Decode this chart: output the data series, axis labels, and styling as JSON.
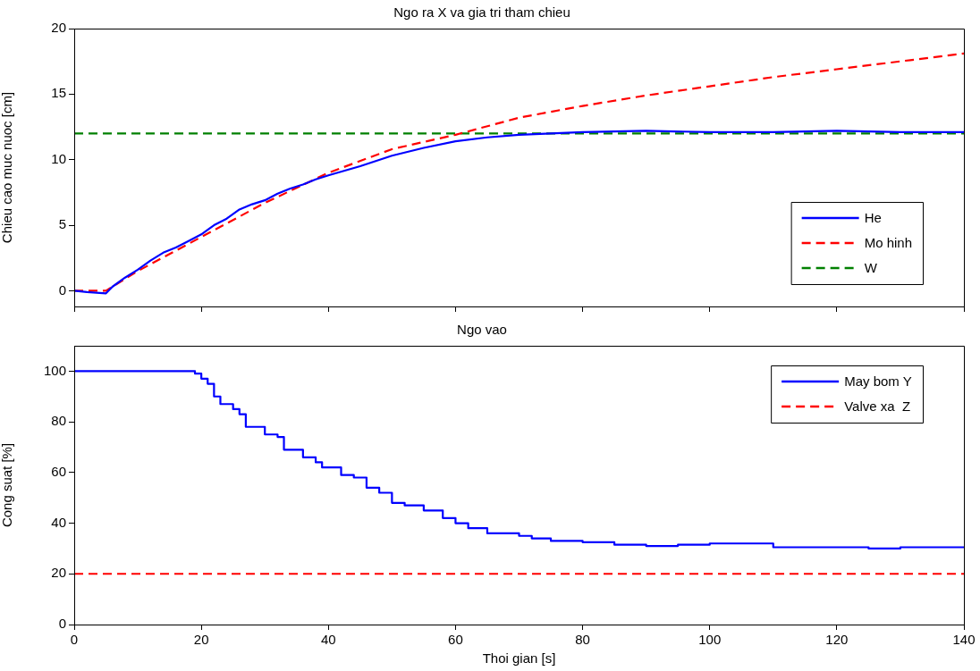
{
  "chart_data": [
    {
      "type": "line",
      "title": "Ngo ra X va gia tri tham chieu",
      "ylabel": "Chieu cao muc nuoc [cm]",
      "xlim": [
        0,
        140
      ],
      "xticks": [
        0,
        20,
        40,
        60,
        80,
        100,
        120,
        140
      ],
      "ylim": [
        -1.2,
        20
      ],
      "yticks": [
        0,
        5,
        10,
        15,
        20
      ],
      "tick_labels": "y",
      "grid": false,
      "legend": "bottom right",
      "marker": "none",
      "series": [
        {
          "name": "He",
          "color": "#0000ff",
          "line_style": "solid",
          "x": [
            0,
            2,
            5,
            6,
            8,
            10,
            12,
            14,
            16,
            18,
            20,
            22,
            24,
            26,
            28,
            30,
            32,
            34,
            36,
            38,
            40,
            45,
            50,
            55,
            60,
            65,
            70,
            80,
            90,
            100,
            110,
            120,
            130,
            140
          ],
          "values": [
            0,
            -0.1,
            -0.2,
            0.3,
            1,
            1.6,
            2.3,
            2.9,
            3.3,
            3.8,
            4.3,
            5,
            5.5,
            6.2,
            6.6,
            6.9,
            7.4,
            7.8,
            8.1,
            8.5,
            8.8,
            9.5,
            10.3,
            10.9,
            11.4,
            11.7,
            11.9,
            12.1,
            12.2,
            12.1,
            12.1,
            12.2,
            12.1,
            12.1
          ]
        },
        {
          "name": "Mo hinh",
          "color": "#ff0000",
          "line_style": "dashed",
          "x": [
            0,
            5,
            10,
            20,
            30,
            40,
            50,
            60,
            70,
            80,
            90,
            100,
            110,
            120,
            130,
            140
          ],
          "values": [
            0,
            0,
            1.5,
            4.1,
            6.7,
            9,
            10.8,
            11.9,
            13.2,
            14.1,
            14.9,
            15.6,
            16.3,
            16.9,
            17.5,
            18.1
          ]
        },
        {
          "name": "W",
          "color": "#008000",
          "line_style": "dashed",
          "x": [
            0,
            140
          ],
          "values": [
            12,
            12
          ]
        }
      ]
    },
    {
      "type": "line",
      "title": "Ngo vao",
      "xlabel": "Thoi gian [s]",
      "ylabel": "Cong suat [%]",
      "xlim": [
        0,
        140
      ],
      "xticks": [
        0,
        20,
        40,
        60,
        80,
        100,
        120,
        140
      ],
      "ylim": [
        0,
        110
      ],
      "yticks": [
        0,
        20,
        40,
        60,
        80,
        100
      ],
      "grid": false,
      "legend": "top right",
      "marker": "none",
      "series": [
        {
          "name": "May bom Y",
          "type": "step",
          "color": "#0000ff",
          "line_style": "solid",
          "x": [
            0,
            18,
            19,
            20,
            21,
            22,
            23,
            25,
            26,
            27,
            30,
            32,
            33,
            36,
            38,
            39,
            42,
            44,
            46,
            48,
            50,
            52,
            55,
            58,
            60,
            62,
            65,
            70,
            72,
            75,
            80,
            85,
            90,
            95,
            100,
            105,
            110,
            120,
            125,
            130,
            140
          ],
          "values": [
            100,
            100,
            99,
            97,
            95,
            90,
            87,
            85,
            83,
            78,
            75,
            74,
            69,
            66,
            64,
            62,
            59,
            58,
            54,
            52,
            48,
            47,
            45,
            42,
            40,
            38,
            36,
            35,
            34,
            33,
            32.5,
            31.5,
            31,
            31.5,
            32,
            32,
            30.5,
            30.5,
            30,
            30.5,
            30.5
          ]
        },
        {
          "name": "Valve xa  Z",
          "color": "#ff0000",
          "line_style": "dashed",
          "x": [
            0,
            140
          ],
          "values": [
            20,
            20
          ]
        }
      ]
    }
  ]
}
